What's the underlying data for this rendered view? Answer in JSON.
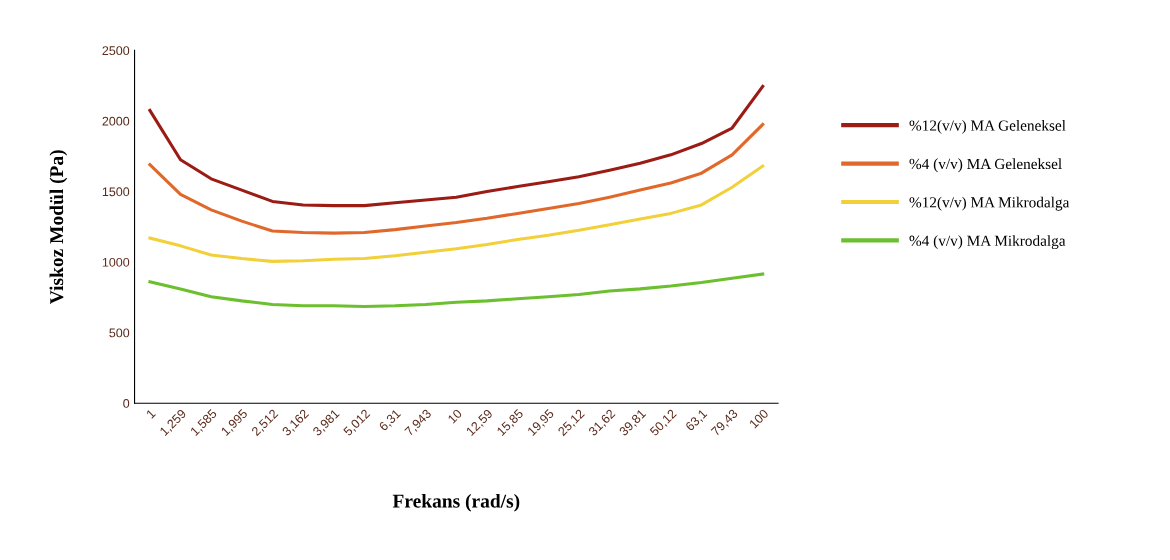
{
  "chart_data": {
    "type": "line",
    "xlabel": "Frekans (rad/s)",
    "ylabel": "Viskoz Modül (Pa)",
    "categories": [
      "1",
      "1,259",
      "1,585",
      "1,995",
      "2,512",
      "3,162",
      "3,981",
      "5,012",
      "6,31",
      "7,943",
      "10",
      "12,59",
      "15,85",
      "19,95",
      "25,12",
      "31,62",
      "39,81",
      "50,12",
      "63,1",
      "79,43",
      "100"
    ],
    "ylim": [
      0,
      2500
    ],
    "yticks": [
      0,
      500,
      1000,
      1500,
      2000,
      2500
    ],
    "grid": false,
    "legend": "right",
    "marker": "none",
    "line_style": "solid",
    "series": [
      {
        "name": "%12(v/v) MA Geleneksel",
        "color": "#9b1c14",
        "values": [
          2075,
          1725,
          1590,
          1510,
          1430,
          1405,
          1400,
          1400,
          1420,
          1440,
          1460,
          1500,
          1535,
          1570,
          1605,
          1650,
          1700,
          1760,
          1840,
          1950,
          2245
        ]
      },
      {
        "name": "%4 (v/v) MA Geleneksel",
        "color": "#e0682a",
        "values": [
          1690,
          1480,
          1370,
          1290,
          1220,
          1210,
          1205,
          1210,
          1230,
          1255,
          1280,
          1310,
          1345,
          1380,
          1415,
          1460,
          1510,
          1560,
          1630,
          1760,
          1975
        ]
      },
      {
        "name": "%12(v/v) MA Mikrodalga",
        "color": "#f2d03a",
        "values": [
          1170,
          1115,
          1050,
          1025,
          1005,
          1010,
          1020,
          1025,
          1045,
          1070,
          1095,
          1125,
          1160,
          1190,
          1225,
          1265,
          1305,
          1345,
          1405,
          1530,
          1680
        ]
      },
      {
        "name": "%4 (v/v) MA Mikrodalga",
        "color": "#6cbf2e",
        "values": [
          860,
          810,
          755,
          725,
          700,
          690,
          690,
          685,
          690,
          700,
          715,
          725,
          740,
          755,
          770,
          795,
          810,
          830,
          855,
          885,
          915
        ]
      }
    ]
  }
}
